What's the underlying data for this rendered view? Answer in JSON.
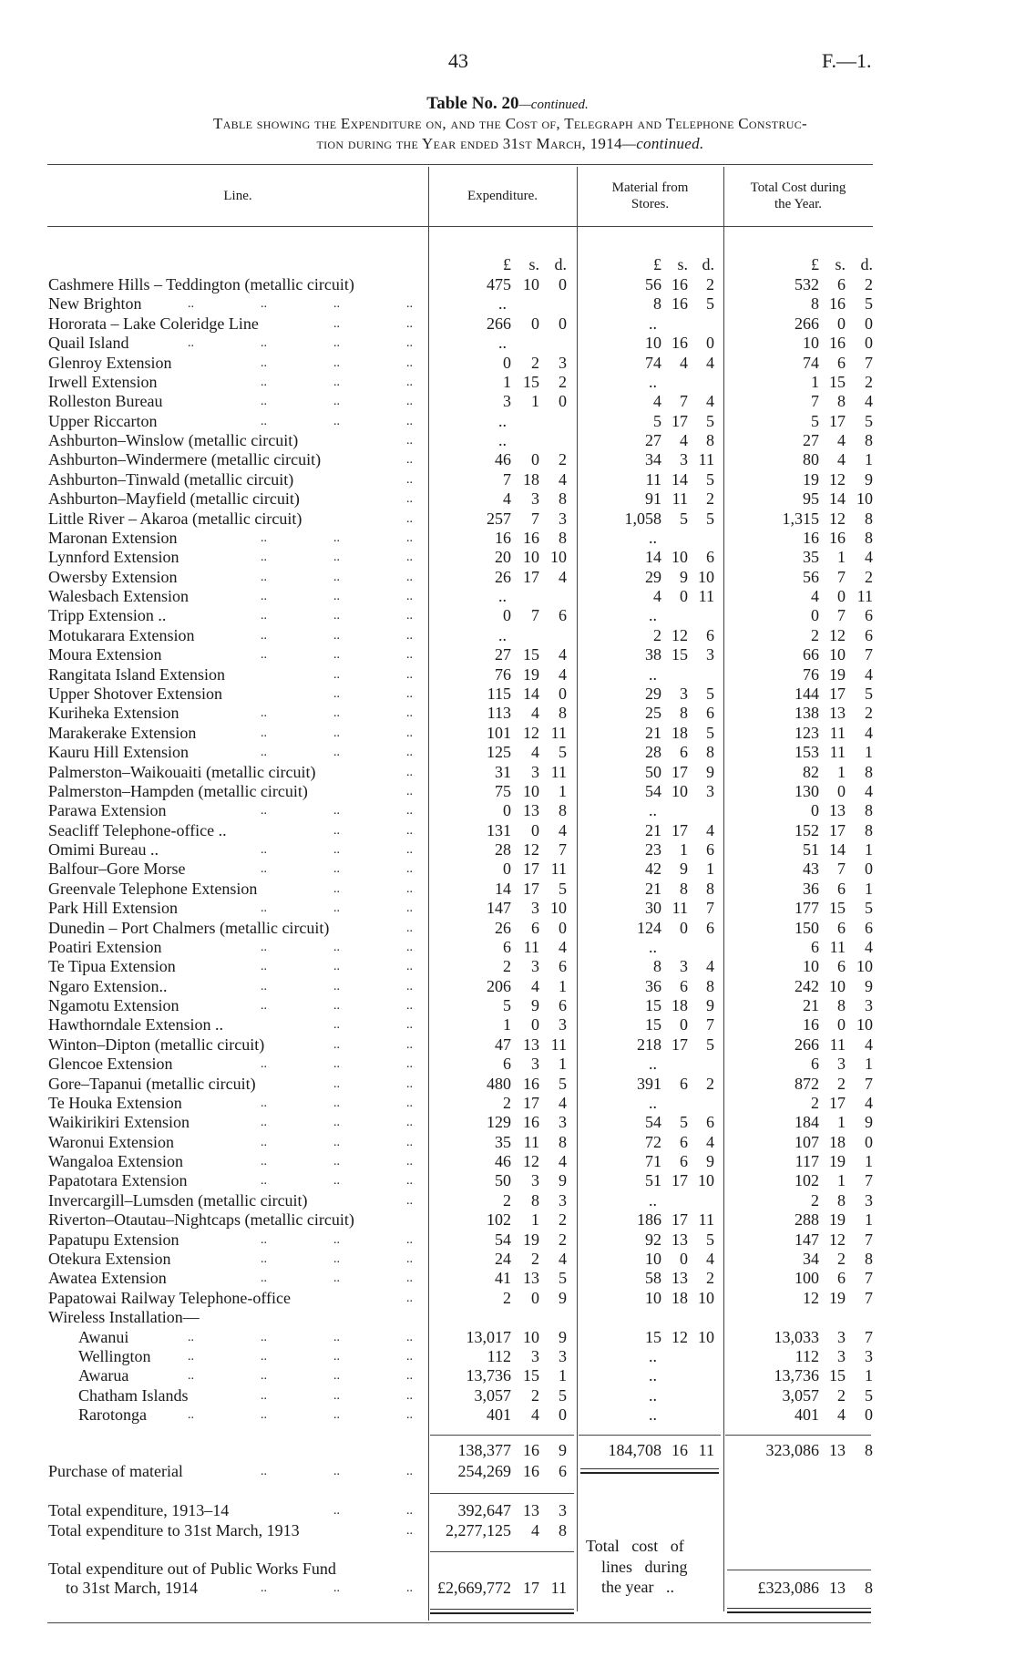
{
  "page": {
    "number": "43",
    "reference": "F.—1."
  },
  "title": {
    "main": "Table No. 20",
    "suffix": "—continued."
  },
  "subtitle": {
    "line1": "Table showing the Expenditure on, and the Cost of, Telegraph and Telephone Construc-",
    "line2": "tion during the Year ended 31st March, 1914",
    "line2_suffix": "—continued."
  },
  "headers": {
    "line": "Line.",
    "expenditure": "Expenditure.",
    "material_1": "Material from",
    "material_2": "Stores.",
    "total_1": "Total Cost during",
    "total_2": "the Year."
  },
  "units": {
    "pounds": "£",
    "shillings": "s.",
    "pence": "d."
  },
  "leader_mark": "..",
  "rows": [
    {
      "name": "Cashmere Hills – Teddington (metallic circuit)",
      "dots": 0,
      "exp": [
        "475",
        "10",
        "0"
      ],
      "mat": [
        "56",
        "16",
        "2"
      ],
      "tot": [
        "532",
        "6",
        "2"
      ]
    },
    {
      "name": "New Brighton",
      "dots": 4,
      "exp": "..",
      "mat": [
        "8",
        "16",
        "5"
      ],
      "tot": [
        "8",
        "16",
        "5"
      ]
    },
    {
      "name": "Hororata – Lake Coleridge Line",
      "dots": 2,
      "exp": [
        "266",
        "0",
        "0"
      ],
      "mat": "..",
      "tot": [
        "266",
        "0",
        "0"
      ]
    },
    {
      "name": "Quail Island",
      "dots": 4,
      "exp": "..",
      "mat": [
        "10",
        "16",
        "0"
      ],
      "tot": [
        "10",
        "16",
        "0"
      ]
    },
    {
      "name": "Glenroy Extension",
      "dots": 3,
      "exp": [
        "0",
        "2",
        "3"
      ],
      "mat": [
        "74",
        "4",
        "4"
      ],
      "tot": [
        "74",
        "6",
        "7"
      ]
    },
    {
      "name": "Irwell Extension",
      "dots": 3,
      "exp": [
        "1",
        "15",
        "2"
      ],
      "mat": "..",
      "tot": [
        "1",
        "15",
        "2"
      ]
    },
    {
      "name": "Rolleston Bureau",
      "dots": 3,
      "exp": [
        "3",
        "1",
        "0"
      ],
      "mat": [
        "4",
        "7",
        "4"
      ],
      "tot": [
        "7",
        "8",
        "4"
      ]
    },
    {
      "name": "Upper Riccarton",
      "dots": 3,
      "exp": "..",
      "mat": [
        "5",
        "17",
        "5"
      ],
      "tot": [
        "5",
        "17",
        "5"
      ]
    },
    {
      "name": "Ashburton–Winslow (metallic circuit)",
      "dots": 1,
      "exp": "..",
      "mat": [
        "27",
        "4",
        "8"
      ],
      "tot": [
        "27",
        "4",
        "8"
      ]
    },
    {
      "name": "Ashburton–Windermere (metallic circuit)",
      "dots": 1,
      "exp": [
        "46",
        "0",
        "2"
      ],
      "mat": [
        "34",
        "3",
        "11"
      ],
      "tot": [
        "80",
        "4",
        "1"
      ]
    },
    {
      "name": "Ashburton–Tinwald (metallic circuit)",
      "dots": 1,
      "exp": [
        "7",
        "18",
        "4"
      ],
      "mat": [
        "11",
        "14",
        "5"
      ],
      "tot": [
        "19",
        "12",
        "9"
      ]
    },
    {
      "name": "Ashburton–Mayfield (metallic circuit)",
      "dots": 1,
      "exp": [
        "4",
        "3",
        "8"
      ],
      "mat": [
        "91",
        "11",
        "2"
      ],
      "tot": [
        "95",
        "14",
        "10"
      ]
    },
    {
      "name": "Little River – Akaroa (metallic circuit)",
      "dots": 1,
      "exp": [
        "257",
        "7",
        "3"
      ],
      "mat": [
        "1,058",
        "5",
        "5"
      ],
      "tot": [
        "1,315",
        "12",
        "8"
      ]
    },
    {
      "name": "Maronan Extension",
      "dots": 3,
      "exp": [
        "16",
        "16",
        "8"
      ],
      "mat": "..",
      "tot": [
        "16",
        "16",
        "8"
      ]
    },
    {
      "name": "Lynnford Extension",
      "dots": 3,
      "exp": [
        "20",
        "10",
        "10"
      ],
      "mat": [
        "14",
        "10",
        "6"
      ],
      "tot": [
        "35",
        "1",
        "4"
      ]
    },
    {
      "name": "Owersby Extension",
      "dots": 3,
      "exp": [
        "26",
        "17",
        "4"
      ],
      "mat": [
        "29",
        "9",
        "10"
      ],
      "tot": [
        "56",
        "7",
        "2"
      ]
    },
    {
      "name": "Walesbach Extension",
      "dots": 3,
      "exp": "..",
      "mat": [
        "4",
        "0",
        "11"
      ],
      "tot": [
        "4",
        "0",
        "11"
      ]
    },
    {
      "name": "Tripp Extension ..",
      "dots": 3,
      "exp": [
        "0",
        "7",
        "6"
      ],
      "mat": "..",
      "tot": [
        "0",
        "7",
        "6"
      ]
    },
    {
      "name": "Motukarara Extension",
      "dots": 3,
      "exp": "..",
      "mat": [
        "2",
        "12",
        "6"
      ],
      "tot": [
        "2",
        "12",
        "6"
      ]
    },
    {
      "name": "Moura Extension",
      "dots": 3,
      "exp": [
        "27",
        "15",
        "4"
      ],
      "mat": [
        "38",
        "15",
        "3"
      ],
      "tot": [
        "66",
        "10",
        "7"
      ]
    },
    {
      "name": "Rangitata Island Extension",
      "dots": 2,
      "exp": [
        "76",
        "19",
        "4"
      ],
      "mat": "..",
      "tot": [
        "76",
        "19",
        "4"
      ]
    },
    {
      "name": "Upper Shotover Extension",
      "dots": 2,
      "exp": [
        "115",
        "14",
        "0"
      ],
      "mat": [
        "29",
        "3",
        "5"
      ],
      "tot": [
        "144",
        "17",
        "5"
      ]
    },
    {
      "name": "Kuriheka Extension",
      "dots": 3,
      "exp": [
        "113",
        "4",
        "8"
      ],
      "mat": [
        "25",
        "8",
        "6"
      ],
      "tot": [
        "138",
        "13",
        "2"
      ]
    },
    {
      "name": "Marakerake Extension",
      "dots": 3,
      "exp": [
        "101",
        "12",
        "11"
      ],
      "mat": [
        "21",
        "18",
        "5"
      ],
      "tot": [
        "123",
        "11",
        "4"
      ]
    },
    {
      "name": "Kauru Hill Extension",
      "dots": 3,
      "exp": [
        "125",
        "4",
        "5"
      ],
      "mat": [
        "28",
        "6",
        "8"
      ],
      "tot": [
        "153",
        "11",
        "1"
      ]
    },
    {
      "name": "Palmerston–Waikouaiti (metallic circuit)",
      "dots": 1,
      "exp": [
        "31",
        "3",
        "11"
      ],
      "mat": [
        "50",
        "17",
        "9"
      ],
      "tot": [
        "82",
        "1",
        "8"
      ]
    },
    {
      "name": "Palmerston–Hampden (metallic circuit)",
      "dots": 1,
      "exp": [
        "75",
        "10",
        "1"
      ],
      "mat": [
        "54",
        "10",
        "3"
      ],
      "tot": [
        "130",
        "0",
        "4"
      ]
    },
    {
      "name": "Parawa Extension",
      "dots": 3,
      "exp": [
        "0",
        "13",
        "8"
      ],
      "mat": "..",
      "tot": [
        "0",
        "13",
        "8"
      ]
    },
    {
      "name": "Seacliff Telephone-office ..",
      "dots": 2,
      "exp": [
        "131",
        "0",
        "4"
      ],
      "mat": [
        "21",
        "17",
        "4"
      ],
      "tot": [
        "152",
        "17",
        "8"
      ]
    },
    {
      "name": "Omimi Bureau ..",
      "dots": 3,
      "exp": [
        "28",
        "12",
        "7"
      ],
      "mat": [
        "23",
        "1",
        "6"
      ],
      "tot": [
        "51",
        "14",
        "1"
      ]
    },
    {
      "name": "Balfour–Gore Morse",
      "dots": 3,
      "exp": [
        "0",
        "17",
        "11"
      ],
      "mat": [
        "42",
        "9",
        "1"
      ],
      "tot": [
        "43",
        "7",
        "0"
      ]
    },
    {
      "name": "Greenvale Telephone Extension",
      "dots": 2,
      "exp": [
        "14",
        "17",
        "5"
      ],
      "mat": [
        "21",
        "8",
        "8"
      ],
      "tot": [
        "36",
        "6",
        "1"
      ]
    },
    {
      "name": "Park Hill Extension",
      "dots": 3,
      "exp": [
        "147",
        "3",
        "10"
      ],
      "mat": [
        "30",
        "11",
        "7"
      ],
      "tot": [
        "177",
        "15",
        "5"
      ]
    },
    {
      "name": "Dunedin – Port Chalmers (metallic circuit)",
      "dots": 1,
      "exp": [
        "26",
        "6",
        "0"
      ],
      "mat": [
        "124",
        "0",
        "6"
      ],
      "tot": [
        "150",
        "6",
        "6"
      ]
    },
    {
      "name": "Poatiri Extension",
      "dots": 3,
      "exp": [
        "6",
        "11",
        "4"
      ],
      "mat": "..",
      "tot": [
        "6",
        "11",
        "4"
      ]
    },
    {
      "name": "Te Tipua Extension",
      "dots": 3,
      "exp": [
        "2",
        "3",
        "6"
      ],
      "mat": [
        "8",
        "3",
        "4"
      ],
      "tot": [
        "10",
        "6",
        "10"
      ]
    },
    {
      "name": "Ngaro Extension..",
      "dots": 3,
      "exp": [
        "206",
        "4",
        "1"
      ],
      "mat": [
        "36",
        "6",
        "8"
      ],
      "tot": [
        "242",
        "10",
        "9"
      ]
    },
    {
      "name": "Ngamotu Extension",
      "dots": 3,
      "exp": [
        "5",
        "9",
        "6"
      ],
      "mat": [
        "15",
        "18",
        "9"
      ],
      "tot": [
        "21",
        "8",
        "3"
      ]
    },
    {
      "name": "Hawthorndale Extension ..",
      "dots": 2,
      "exp": [
        "1",
        "0",
        "3"
      ],
      "mat": [
        "15",
        "0",
        "7"
      ],
      "tot": [
        "16",
        "0",
        "10"
      ]
    },
    {
      "name": "Winton–Dipton (metallic circuit)",
      "dots": 2,
      "exp": [
        "47",
        "13",
        "11"
      ],
      "mat": [
        "218",
        "17",
        "5"
      ],
      "tot": [
        "266",
        "11",
        "4"
      ]
    },
    {
      "name": "Glencoe Extension",
      "dots": 3,
      "exp": [
        "6",
        "3",
        "1"
      ],
      "mat": "..",
      "tot": [
        "6",
        "3",
        "1"
      ]
    },
    {
      "name": "Gore–Tapanui (metallic circuit)",
      "dots": 2,
      "exp": [
        "480",
        "16",
        "5"
      ],
      "mat": [
        "391",
        "6",
        "2"
      ],
      "tot": [
        "872",
        "2",
        "7"
      ]
    },
    {
      "name": "Te Houka Extension",
      "dots": 3,
      "exp": [
        "2",
        "17",
        "4"
      ],
      "mat": "..",
      "tot": [
        "2",
        "17",
        "4"
      ]
    },
    {
      "name": "Waikirikiri Extension",
      "dots": 3,
      "exp": [
        "129",
        "16",
        "3"
      ],
      "mat": [
        "54",
        "5",
        "6"
      ],
      "tot": [
        "184",
        "1",
        "9"
      ]
    },
    {
      "name": "Waronui Extension",
      "dots": 3,
      "exp": [
        "35",
        "11",
        "8"
      ],
      "mat": [
        "72",
        "6",
        "4"
      ],
      "tot": [
        "107",
        "18",
        "0"
      ]
    },
    {
      "name": "Wangaloa Extension",
      "dots": 3,
      "exp": [
        "46",
        "12",
        "4"
      ],
      "mat": [
        "71",
        "6",
        "9"
      ],
      "tot": [
        "117",
        "19",
        "1"
      ]
    },
    {
      "name": "Papatotara Extension",
      "dots": 3,
      "exp": [
        "50",
        "3",
        "9"
      ],
      "mat": [
        "51",
        "17",
        "10"
      ],
      "tot": [
        "102",
        "1",
        "7"
      ]
    },
    {
      "name": "Invercargill–Lumsden (metallic circuit)",
      "dots": 1,
      "exp": [
        "2",
        "8",
        "3"
      ],
      "mat": "..",
      "tot": [
        "2",
        "8",
        "3"
      ]
    },
    {
      "name": "Riverton–Otautau–Nightcaps (metallic circuit)",
      "dots": 0,
      "exp": [
        "102",
        "1",
        "2"
      ],
      "mat": [
        "186",
        "17",
        "11"
      ],
      "tot": [
        "288",
        "19",
        "1"
      ]
    },
    {
      "name": "Papatupu Extension",
      "dots": 3,
      "exp": [
        "54",
        "19",
        "2"
      ],
      "mat": [
        "92",
        "13",
        "5"
      ],
      "tot": [
        "147",
        "12",
        "7"
      ]
    },
    {
      "name": "Otekura Extension",
      "dots": 3,
      "exp": [
        "24",
        "2",
        "4"
      ],
      "mat": [
        "10",
        "0",
        "4"
      ],
      "tot": [
        "34",
        "2",
        "8"
      ]
    },
    {
      "name": "Awatea Extension",
      "dots": 3,
      "exp": [
        "41",
        "13",
        "5"
      ],
      "mat": [
        "58",
        "13",
        "2"
      ],
      "tot": [
        "100",
        "6",
        "7"
      ]
    },
    {
      "name": "Papatowai Railway Telephone-office",
      "dots": 1,
      "exp": [
        "2",
        "0",
        "9"
      ],
      "mat": [
        "10",
        "18",
        "10"
      ],
      "tot": [
        "12",
        "19",
        "7"
      ]
    },
    {
      "name": "Wireless Installation—",
      "dots": 0,
      "exp": null,
      "mat": null,
      "tot": null
    },
    {
      "name": "Awanui",
      "indent": true,
      "dots": 4,
      "exp": [
        "13,017",
        "10",
        "9"
      ],
      "mat": [
        "15",
        "12",
        "10"
      ],
      "tot": [
        "13,033",
        "3",
        "7"
      ]
    },
    {
      "name": "Wellington",
      "indent": true,
      "dots": 4,
      "exp": [
        "112",
        "3",
        "3"
      ],
      "mat": "..",
      "tot": [
        "112",
        "3",
        "3"
      ]
    },
    {
      "name": "Awarua",
      "indent": true,
      "dots": 4,
      "exp": [
        "13,736",
        "15",
        "1"
      ],
      "mat": "..",
      "tot": [
        "13,736",
        "15",
        "1"
      ]
    },
    {
      "name": "Chatham Islands",
      "indent": true,
      "dots": 3,
      "exp": [
        "3,057",
        "2",
        "5"
      ],
      "mat": "..",
      "tot": [
        "3,057",
        "2",
        "5"
      ]
    },
    {
      "name": "Rarotonga",
      "indent": true,
      "dots": 4,
      "exp": [
        "401",
        "4",
        "0"
      ],
      "mat": "..",
      "tot": [
        "401",
        "4",
        "0"
      ]
    }
  ],
  "totals": {
    "subtotal": {
      "exp": [
        "138,377",
        "16",
        "9"
      ],
      "mat": [
        "184,708",
        "16",
        "11"
      ],
      "tot": [
        "323,086",
        "13",
        "8"
      ]
    },
    "purchase": {
      "label": "Purchase of material",
      "exp": [
        "254,269",
        "16",
        "6"
      ]
    },
    "year": {
      "label": "Total expenditure, 1913–14",
      "exp": [
        "392,647",
        "13",
        "3"
      ]
    },
    "to_1913": {
      "label": "Total expenditure to 31st March, 1913",
      "exp": [
        "2,277,125",
        "4",
        "8"
      ]
    },
    "public_works": {
      "label_1": "Total expenditure out of Public Works Fund",
      "label_2": "to 31st March, 1914",
      "exp": [
        "£2,669,772",
        "17",
        "11"
      ]
    },
    "cost_note": {
      "line1": "Total   cost   of",
      "line2": "lines   during",
      "line3": "the year   .."
    },
    "grand_total": [
      "£323,086",
      "13",
      "8"
    ]
  }
}
